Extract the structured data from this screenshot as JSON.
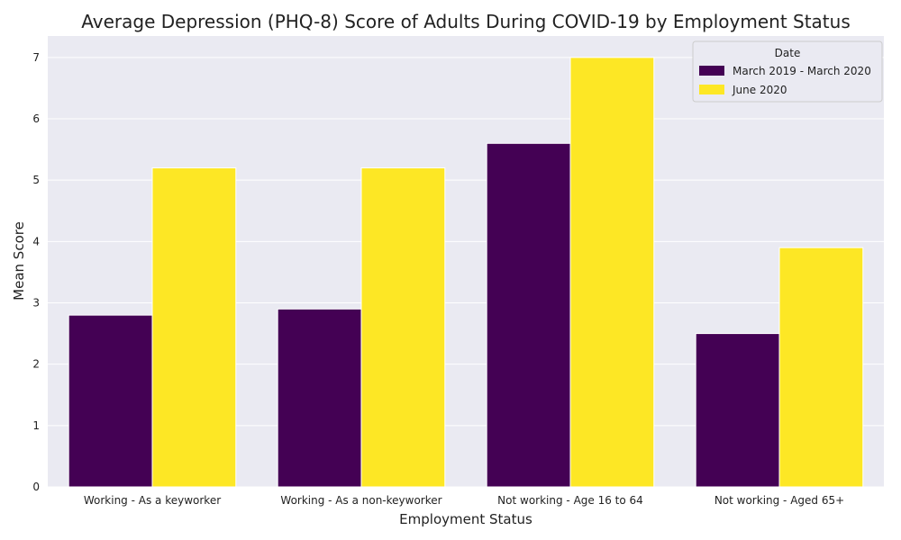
{
  "chart_data": {
    "type": "bar",
    "title": "Average Depression (PHQ-8) Score of Adults During COVID-19 by Employment Status",
    "xlabel": "Employment Status",
    "ylabel": "Mean Score",
    "categories": [
      "Working - As a keyworker",
      "Working - As a non-keyworker",
      "Not working - Age 16 to 64",
      "Not working - Aged 65+"
    ],
    "series": [
      {
        "name": "March 2019 - March 2020",
        "values": [
          2.8,
          2.9,
          5.6,
          2.5
        ],
        "color": "#440154"
      },
      {
        "name": "June 2020",
        "values": [
          5.2,
          5.2,
          7.0,
          3.9
        ],
        "color": "#fde725"
      }
    ],
    "ylim": [
      0,
      7.35
    ],
    "yticks": [
      0,
      1,
      2,
      3,
      4,
      5,
      6,
      7
    ],
    "grid": true,
    "legend": {
      "title": "Date",
      "position": "top-right"
    },
    "background": "#eaeaf2"
  }
}
